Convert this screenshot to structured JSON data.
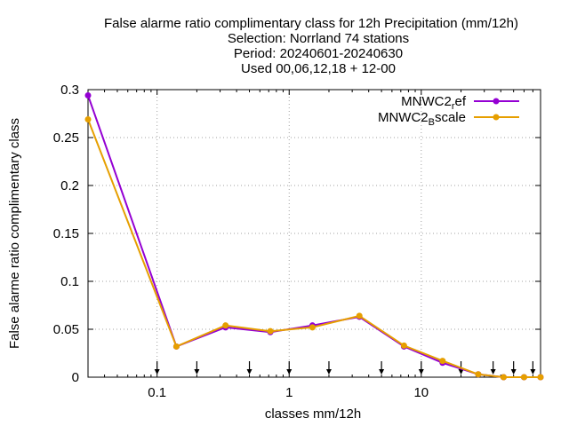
{
  "chart_data": {
    "type": "line",
    "title_lines": [
      "False alarme ratio complimentary class  for 12h Precipitation (mm/12h)",
      "Selection: Norrland     74 stations",
      "Period: 20240601-20240630",
      "Used 00,06,12,18 + 12-00"
    ],
    "xlabel": "classes mm/12h",
    "ylabel": "False alarme ratio complimentary class",
    "x_scale": "log",
    "xlim": [
      0.03,
      80
    ],
    "ylim": [
      0,
      0.3
    ],
    "x_ticks": [
      {
        "value": 0.1,
        "label": "0.1"
      },
      {
        "value": 1,
        "label": "1"
      },
      {
        "value": 10,
        "label": "10"
      }
    ],
    "y_ticks": [
      {
        "value": 0,
        "label": "0"
      },
      {
        "value": 0.05,
        "label": "0.05"
      },
      {
        "value": 0.1,
        "label": "0.1"
      },
      {
        "value": 0.15,
        "label": "0.15"
      },
      {
        "value": 0.2,
        "label": "0.2"
      },
      {
        "value": 0.25,
        "label": "0.25"
      },
      {
        "value": 0.3,
        "label": "0.3"
      }
    ],
    "grid": true,
    "legend_position": "top-right",
    "class_markers": [
      0.1,
      0.2,
      0.5,
      1,
      2,
      5,
      10,
      20,
      35,
      50,
      70
    ],
    "x": [
      0.03,
      0.14,
      0.33,
      0.72,
      1.5,
      3.4,
      7.4,
      14.5,
      27,
      42,
      60,
      80
    ],
    "series": [
      {
        "name": "MNWC2_ref",
        "legend_main": "MNWC2",
        "legend_sub": "r",
        "legend_tail": "ef",
        "color": "#9400d3",
        "values": [
          0.294,
          0.032,
          0.052,
          0.047,
          0.054,
          0.063,
          0.032,
          0.015,
          0.003,
          0.0,
          0.0,
          0.0
        ]
      },
      {
        "name": "MNWC2_Bscale",
        "legend_main": "MNWC2",
        "legend_sub": "B",
        "legend_tail": "scale",
        "color": "#e69f00",
        "values": [
          0.269,
          0.032,
          0.054,
          0.048,
          0.052,
          0.064,
          0.033,
          0.017,
          0.003,
          0.0,
          0.0,
          0.0
        ]
      }
    ]
  }
}
